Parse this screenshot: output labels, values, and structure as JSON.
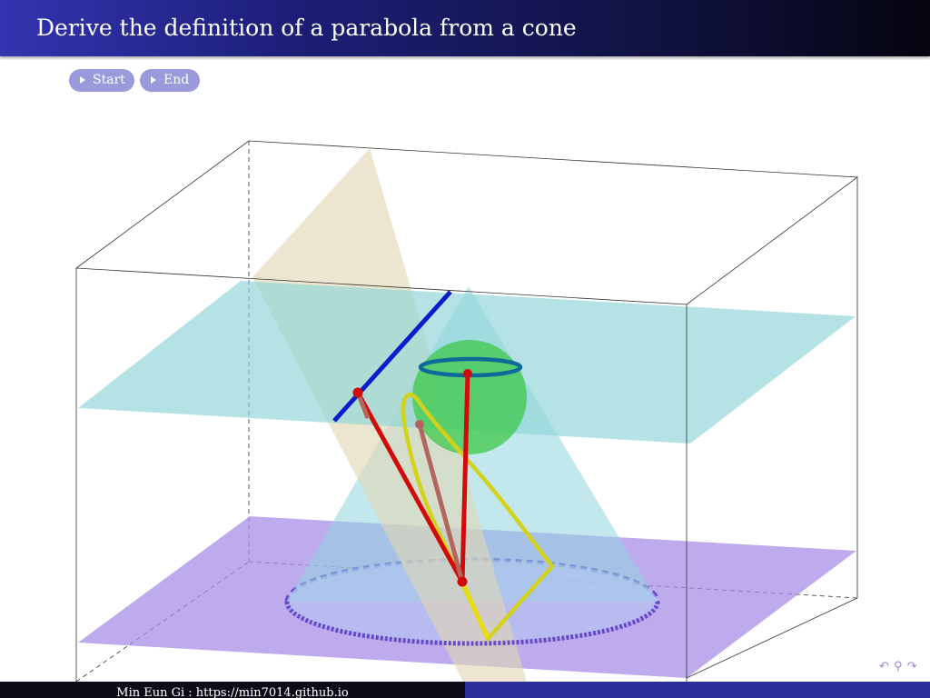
{
  "slide": {
    "title": "Derive the definition of a parabola from a cone"
  },
  "buttons": {
    "start_label": "Start",
    "end_label": "End"
  },
  "footer": {
    "left_text": "Min Eun Gi : https://min7014.github.io"
  },
  "nav": {
    "back_icon": "↶",
    "search_icon": "⚲",
    "forward_icon": "↷"
  },
  "colors": {
    "title_bar": "#1d1f7a",
    "button": "#9a99dc",
    "footer_left": "#0c0c16",
    "footer_right": "#2b2e9c",
    "upper_plane": "#8ed5d8",
    "base_plane": "#a58ae6",
    "cutting_plane": "#e0d6b4",
    "cone": "#90d6e0",
    "sphere": "#3ec94a",
    "parabola": "#d6d41a",
    "directrix": "#0a1ccc",
    "focal_lines": "#d10a0a"
  }
}
